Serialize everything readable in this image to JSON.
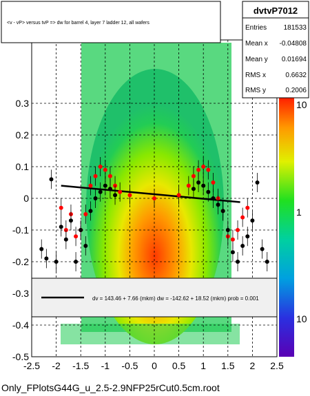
{
  "chart_data": {
    "type": "scatter",
    "title": "<v - vP>       versus  tvP =>  dw for barrel 4, layer 7 ladder 12, all wafers",
    "xlim": [
      -2.5,
      2.5
    ],
    "ylim": [
      -0.5,
      0.5
    ],
    "x_ticks": [
      "-2.5",
      "-2",
      "-1.5",
      "-1",
      "-0.5",
      "0",
      "0.5",
      "1",
      "1.5",
      "2",
      "2.5"
    ],
    "y_ticks": [
      "-0.5",
      "-0.4",
      "-0.3",
      "-0.2",
      "-0.1",
      "0",
      "0.1",
      "0.2",
      "0.3"
    ],
    "grid": true,
    "colorbar_ticks": [
      "10",
      "1",
      "10"
    ],
    "colorbar_log": true,
    "stats": {
      "name": "dvtvP7012",
      "rows": [
        {
          "label": "Entries",
          "value": "181533"
        },
        {
          "label": "Mean x",
          "value": "-0.04808"
        },
        {
          "label": "Mean y",
          "value": "0.01694"
        },
        {
          "label": "RMS x",
          "value": "0.6632"
        },
        {
          "label": "RMS y",
          "value": "0.2006"
        }
      ]
    },
    "fit_legend": "dv =  143.46 +  7.66 (mkm) dw = -142.62 + 18.52 (mkm) prob = 0.001",
    "fit_line": {
      "x": [
        -1.9,
        1.75
      ],
      "y": [
        0.04,
        -0.012
      ]
    },
    "series": [
      {
        "color": "#ff0000",
        "x": [
          -1.9,
          -1.8,
          -1.7,
          -1.6,
          -1.5,
          -1.4,
          -1.3,
          -1.2,
          -1.1,
          -1.0,
          -0.9,
          -0.8,
          -0.7,
          -0.5,
          0.0,
          0.5,
          0.7,
          0.8,
          0.9,
          1.0,
          1.1,
          1.2,
          1.3,
          1.4,
          1.5,
          1.6,
          1.7,
          1.8,
          1.9
        ],
        "y": [
          -0.03,
          -0.1,
          -0.05,
          -0.12,
          -0.1,
          -0.05,
          0.04,
          0.07,
          0.1,
          0.09,
          0.07,
          0.04,
          0.02,
          0.01,
          0.0,
          0.01,
          0.04,
          0.07,
          0.09,
          0.1,
          0.09,
          0.05,
          0.0,
          -0.04,
          -0.12,
          -0.13,
          -0.1,
          -0.06,
          -0.03
        ]
      },
      {
        "color": "#000000",
        "x": [
          -2.3,
          -2.2,
          -2.1,
          -2.0,
          -1.9,
          -1.8,
          -1.7,
          -1.6,
          -1.5,
          -1.4,
          -1.3,
          -1.2,
          -1.1,
          -1.0,
          -0.9,
          -0.8,
          0.8,
          0.9,
          1.0,
          1.1,
          1.2,
          1.3,
          1.4,
          1.5,
          1.6,
          1.7,
          1.8,
          1.9,
          2.0,
          2.1,
          2.2,
          2.3
        ],
        "y": [
          -0.16,
          -0.19,
          0.06,
          -0.2,
          -0.09,
          -0.13,
          -0.07,
          -0.2,
          -0.1,
          -0.15,
          -0.04,
          0.0,
          0.02,
          0.04,
          0.03,
          0.01,
          0.03,
          0.05,
          0.04,
          0.02,
          0.0,
          -0.02,
          -0.04,
          -0.1,
          -0.17,
          -0.2,
          -0.15,
          -0.12,
          -0.07,
          0.05,
          -0.16,
          -0.2
        ]
      }
    ]
  },
  "footer": "Only_FPlotsG44G_u_2.5-2.9NFP25rCut0.5cm.root"
}
